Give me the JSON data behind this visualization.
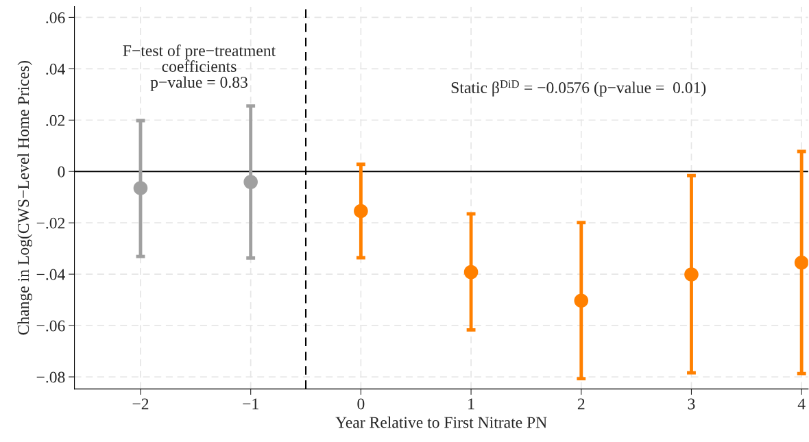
{
  "chart_data": {
    "type": "scatter",
    "xlabel": "Year Relative to First Nitrate PN",
    "ylabel": "Change in Log(CWS−Level Home Prices)",
    "series": [
      {
        "color": "#a0a0a0",
        "x": [
          -2,
          -1
        ],
        "values": [
          -0.0065,
          -0.0041
        ],
        "errors": [
          [
            -0.0331,
            0.0198
          ],
          [
            -0.0337,
            0.0255
          ]
        ]
      },
      {
        "color": "#ff8000",
        "x": [
          0,
          1,
          2,
          3,
          4
        ],
        "values": [
          -0.0154,
          -0.0392,
          -0.0503,
          -0.0401,
          -0.0355
        ],
        "errors": [
          [
            -0.0336,
            0.0028
          ],
          [
            -0.0617,
            -0.0165
          ],
          [
            -0.0807,
            -0.0199
          ],
          [
            -0.0784,
            -0.0016
          ],
          [
            -0.0787,
            0.0078
          ]
        ]
      }
    ],
    "marker": "circle",
    "xlim": [
      -2.6,
      4.06
    ],
    "xticks": [
      {
        "value": -2,
        "label": "−2"
      },
      {
        "value": -1,
        "label": "−1"
      },
      0,
      1,
      2,
      3,
      4
    ],
    "ylim": [
      -0.0847,
      0.0642
    ],
    "yticks": [
      {
        "value": -0.08,
        "label": "−.08"
      },
      {
        "value": -0.06,
        "label": "−.06"
      },
      {
        "value": -0.04,
        "label": "−.04"
      },
      {
        "value": -0.02,
        "label": "−.02"
      },
      0,
      {
        "value": 0.02,
        "label": ".02"
      },
      {
        "value": 0.04,
        "label": ".04"
      },
      {
        "value": 0.06,
        "label": ".06"
      }
    ],
    "grid": true,
    "ref_lines": [
      {
        "axis": "x",
        "value": -0.5,
        "color": "#000000",
        "line_style": "dashed"
      },
      {
        "axis": "y",
        "value": 0,
        "color": "#000000",
        "line_style": "solid"
      }
    ],
    "annotations": [
      "F−test of pre−treatment\ncoefficients\np−value = 0.83",
      "Static β$^{DiD}$ = −0.0576 (p−value =  0.01)"
    ]
  }
}
